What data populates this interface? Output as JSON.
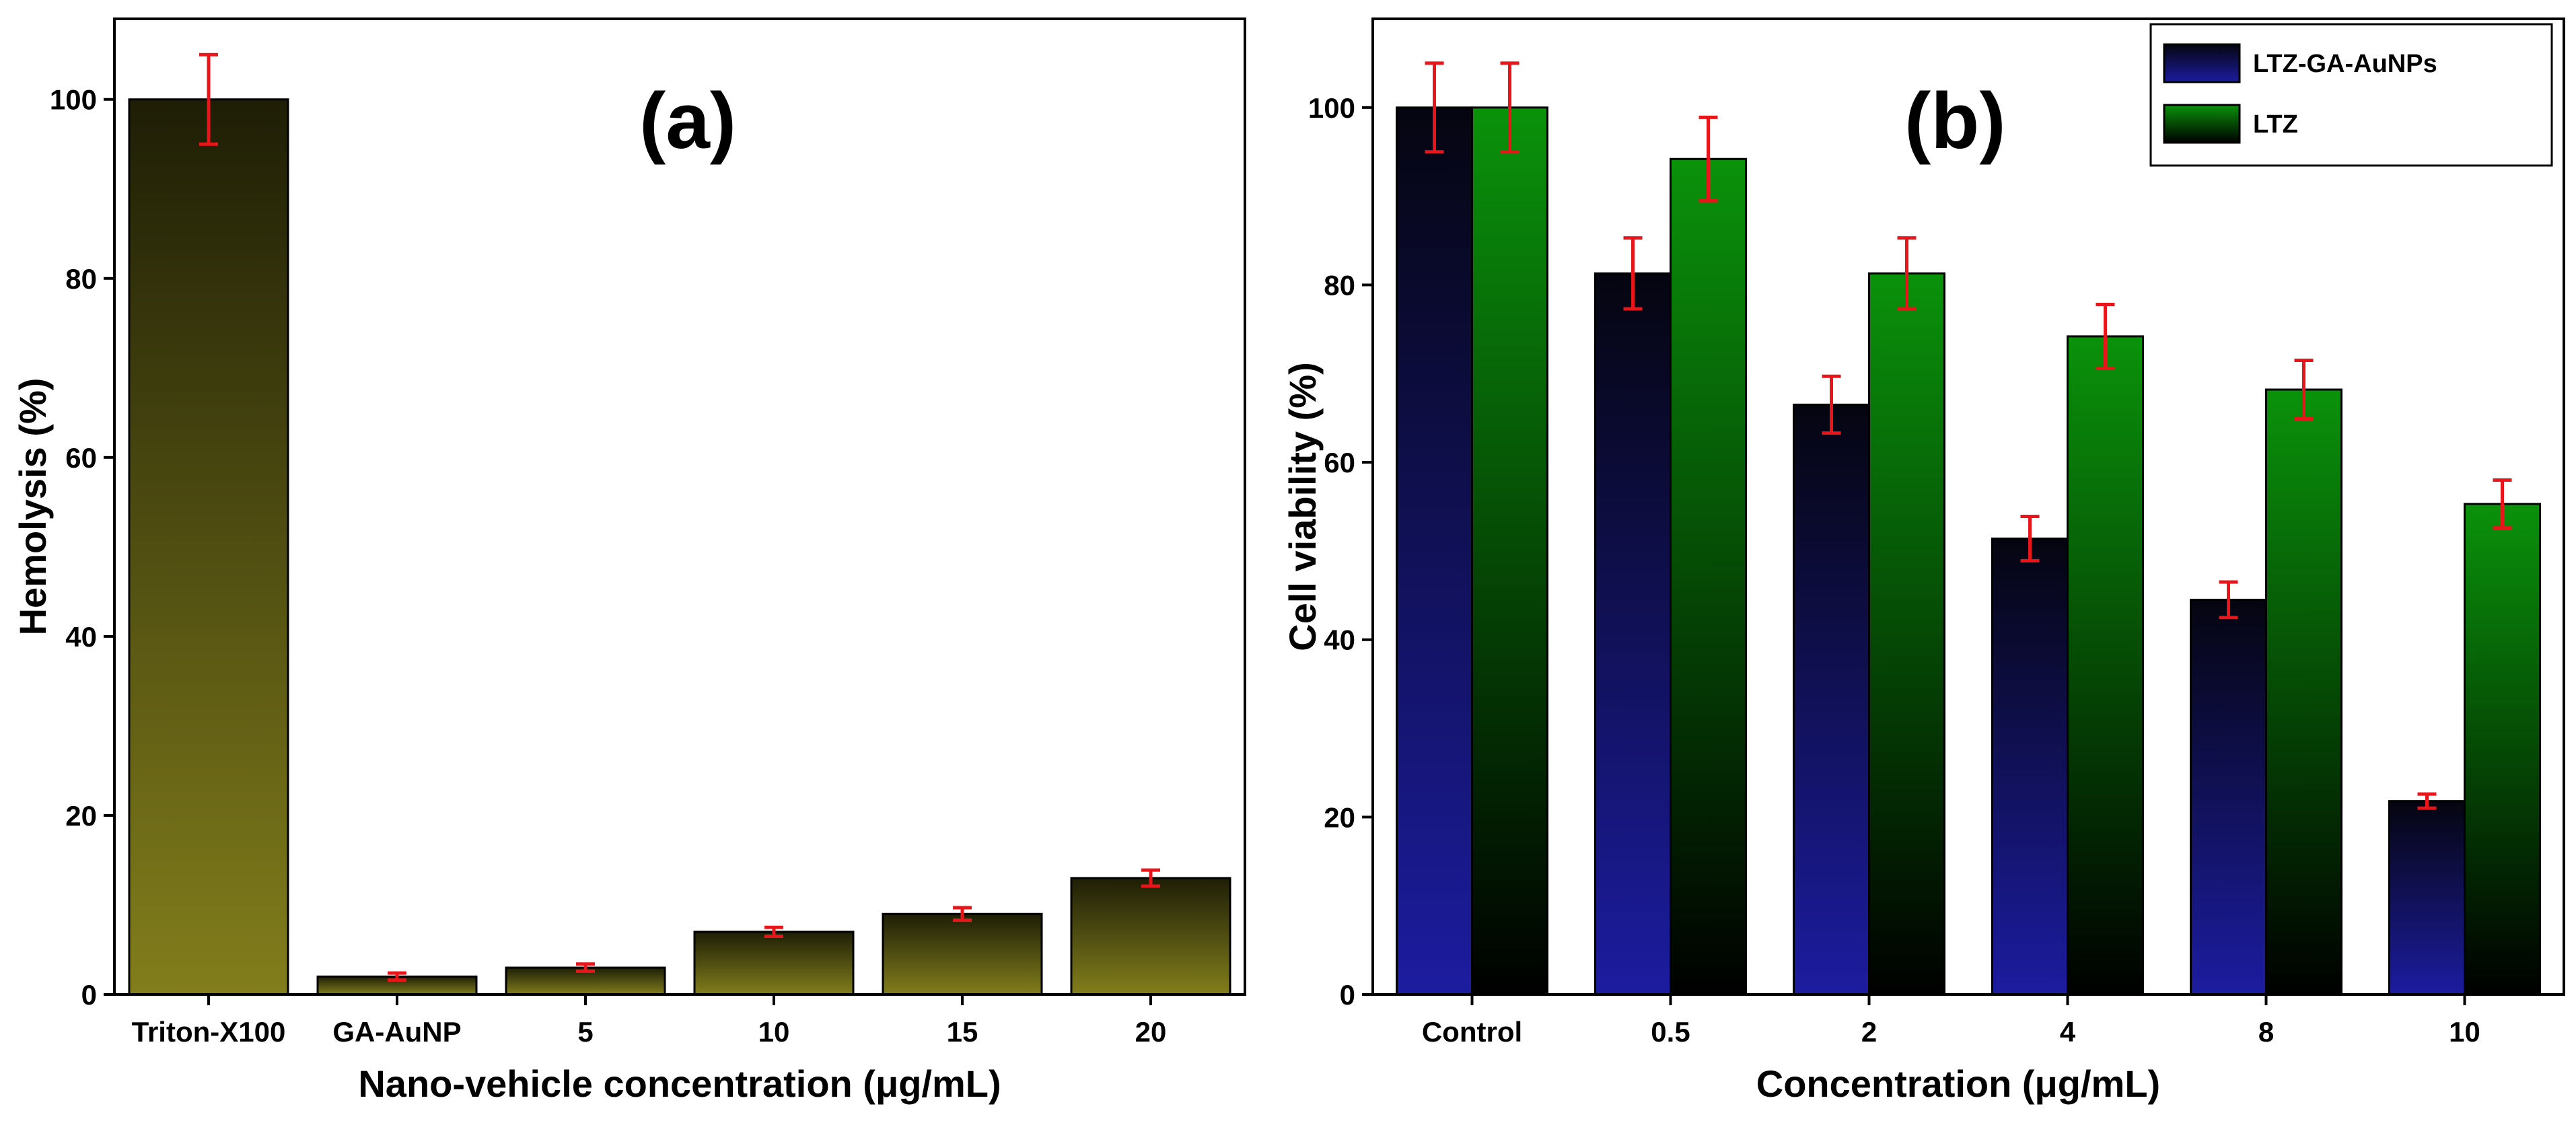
{
  "chart_data": [
    {
      "type": "bar",
      "panel_label": "(a)",
      "title": "",
      "xlabel": "Nano-vehicle concentration (μg/mL)",
      "ylabel": "Hemolysis (%)",
      "ylim": [
        0,
        109
      ],
      "yticks": [
        0,
        20,
        40,
        60,
        80,
        100
      ],
      "categories": [
        "Triton-X100",
        "GA-AuNP",
        "5",
        "10",
        "15",
        "20"
      ],
      "series": [
        {
          "name": "Hemolysis",
          "values": [
            100,
            2,
            3,
            7,
            9,
            13
          ],
          "errors": [
            5,
            0.4,
            0.4,
            0.5,
            0.7,
            0.9
          ],
          "gradient": [
            "#1e1e06",
            "#827e1c"
          ]
        }
      ],
      "grid": false,
      "legend": "none"
    },
    {
      "type": "bar",
      "panel_label": "(b)",
      "title": "",
      "xlabel": "Concentration (μg/mL)",
      "ylabel": "Cell viability (%)",
      "ylim": [
        0,
        110
      ],
      "yticks": [
        0,
        20,
        40,
        60,
        80,
        100
      ],
      "categories": [
        "Control",
        "0.5",
        "2",
        "4",
        "8",
        "10"
      ],
      "series": [
        {
          "name": "LTZ-GA-AuNPs",
          "values": [
            100,
            81.3,
            66.5,
            51.4,
            44.5,
            21.8
          ],
          "errors": [
            5,
            4,
            3.2,
            2.5,
            2,
            0.8
          ],
          "gradient": [
            "#050510",
            "#1c1ca0"
          ]
        },
        {
          "name": "LTZ",
          "values": [
            100,
            94.2,
            81.3,
            74.2,
            68.2,
            55.3
          ],
          "errors": [
            5,
            4.7,
            4,
            3.6,
            3.3,
            2.7
          ],
          "gradient": [
            "#0a920a",
            "#000000"
          ]
        }
      ],
      "grid": false,
      "legend": "top-right"
    }
  ]
}
